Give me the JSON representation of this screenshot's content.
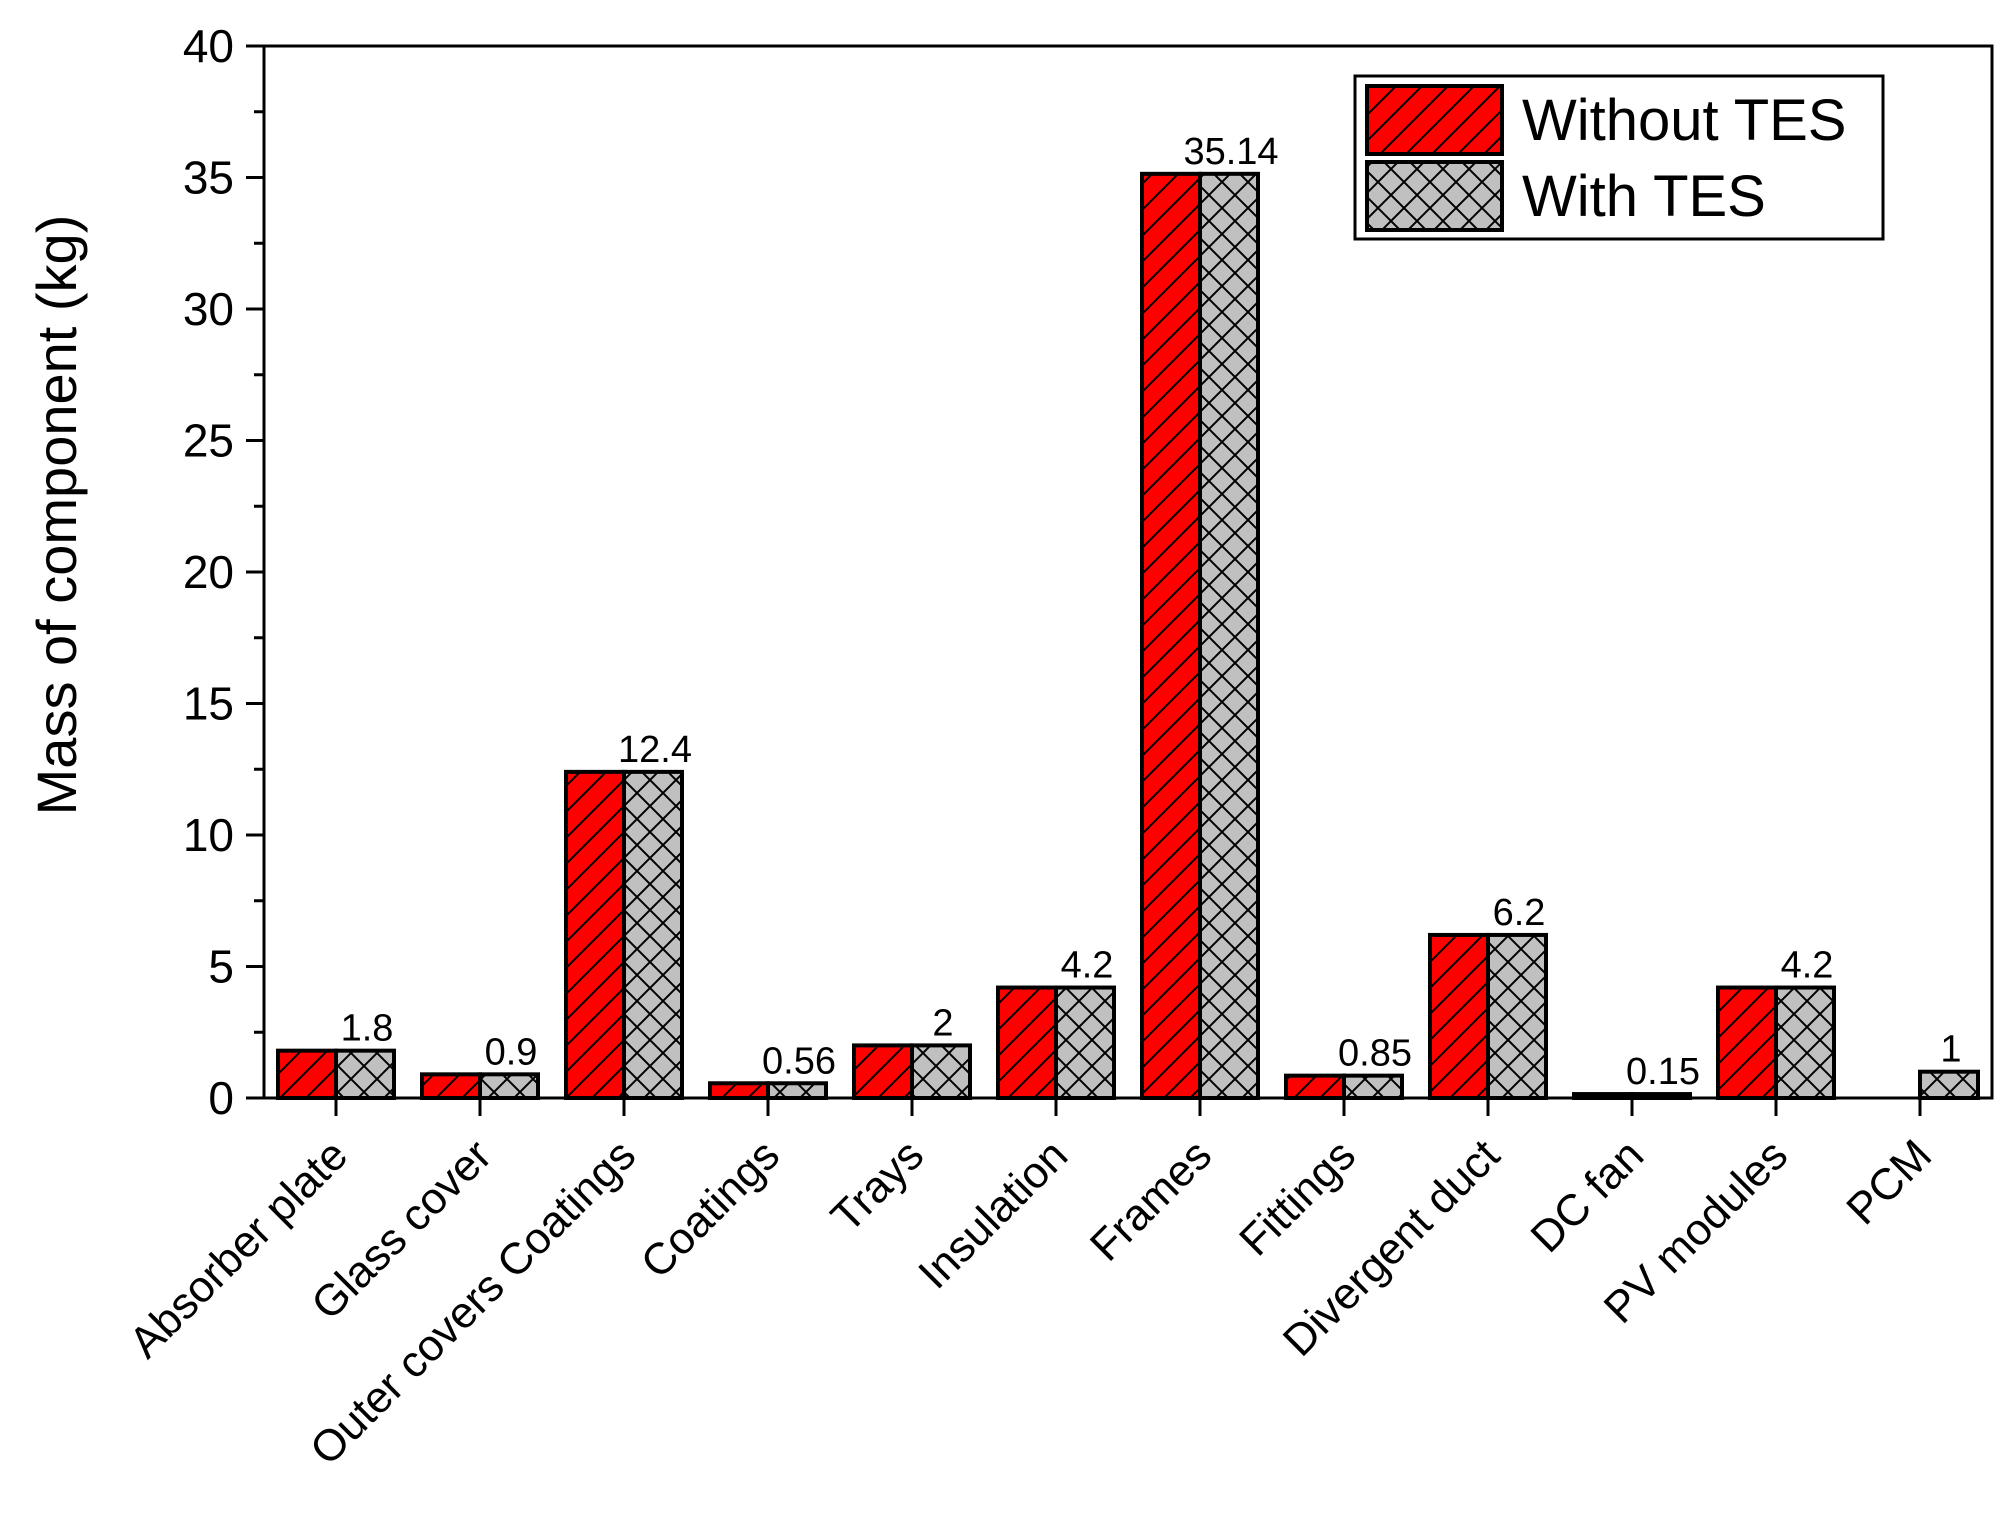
{
  "chart_data": {
    "type": "bar",
    "ylabel": "Mass of component (kg)",
    "xlabel": "",
    "ylim": [
      0,
      40
    ],
    "yticks": [
      0,
      5,
      10,
      15,
      20,
      25,
      30,
      35,
      40
    ],
    "categories": [
      "Absorber plate",
      "Glass cover",
      "Outer covers Coatings",
      "Coatings",
      "Trays",
      "Insulation",
      "Frames",
      "Fittings",
      "Divergent duct",
      "DC fan",
      "PV modules",
      "PCM"
    ],
    "series": [
      {
        "name": "Without TES",
        "color": "#ff0000",
        "pattern": "diagonal-hatch",
        "values": [
          1.8,
          0.9,
          12.4,
          0.56,
          2,
          4.2,
          35.14,
          0.85,
          6.2,
          0.15,
          4.2,
          0
        ]
      },
      {
        "name": "With TES",
        "color": "#c0c0c0",
        "pattern": "cross-hatch",
        "values": [
          1.8,
          0.9,
          12.4,
          0.56,
          2,
          4.2,
          35.14,
          0.85,
          6.2,
          0.15,
          4.2,
          1
        ]
      }
    ],
    "data_labels": [
      "1.8",
      "0.9",
      "12.4",
      "0.56",
      "2",
      "4.2",
      "35.14",
      "0.85",
      "6.2",
      "0.15",
      "4.2",
      "1"
    ],
    "legend_position": "top-right",
    "grid": false
  }
}
